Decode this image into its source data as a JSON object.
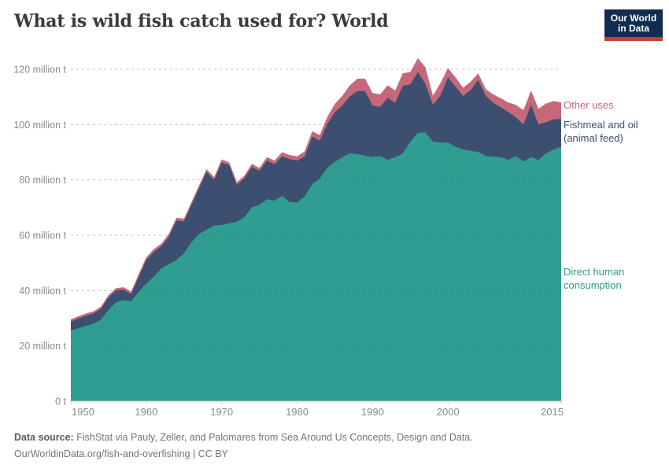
{
  "header": {
    "title": "What is wild fish catch used for? World"
  },
  "logo": {
    "line1": "Our World",
    "line2": "in Data",
    "bg_color": "#102D50",
    "accent_color": "#C53D33"
  },
  "legend": [
    {
      "label": "Other uses",
      "color": "#C5697A"
    },
    {
      "label": "Fishmeal and oil\n(animal feed)",
      "color": "#3D4F70"
    },
    {
      "label": "Direct human\nconsumption",
      "color": "#2F9E90"
    }
  ],
  "footer": {
    "source_label": "Data source:",
    "source_text": " FishStat via Pauly, Zeller, and Palomares from Sea Around Us Concepts, Design and Data.",
    "citation": "OurWorldinData.org/fish-and-overfishing | CC BY"
  },
  "chart_data": {
    "type": "area",
    "stacked": true,
    "title": "What is wild fish catch used for? World",
    "xlabel": "",
    "ylabel": "",
    "grid": true,
    "legend_position": "right",
    "xlim": [
      1950,
      2015
    ],
    "ylim": [
      0,
      120
    ],
    "x_ticks": [
      1950,
      1960,
      1970,
      1980,
      1990,
      2000,
      2015
    ],
    "y_ticks": [
      {
        "value": 0,
        "label": "0 t"
      },
      {
        "value": 20,
        "label": "20 million t"
      },
      {
        "value": 40,
        "label": "40 million t"
      },
      {
        "value": 60,
        "label": "60 million t"
      },
      {
        "value": 80,
        "label": "80 million t"
      },
      {
        "value": 100,
        "label": "100 million t"
      },
      {
        "value": 120,
        "label": "120 million t"
      }
    ],
    "x": [
      1950,
      1951,
      1952,
      1953,
      1954,
      1955,
      1956,
      1957,
      1958,
      1959,
      1960,
      1961,
      1962,
      1963,
      1964,
      1965,
      1966,
      1967,
      1968,
      1969,
      1970,
      1971,
      1972,
      1973,
      1974,
      1975,
      1976,
      1977,
      1978,
      1979,
      1980,
      1981,
      1982,
      1983,
      1984,
      1985,
      1986,
      1987,
      1988,
      1989,
      1990,
      1991,
      1992,
      1993,
      1994,
      1995,
      1996,
      1997,
      1998,
      1999,
      2000,
      2001,
      2002,
      2003,
      2004,
      2005,
      2006,
      2007,
      2008,
      2009,
      2010,
      2011,
      2012,
      2013,
      2014,
      2015
    ],
    "unit": "million tonnes",
    "series": [
      {
        "name": "Direct human consumption",
        "color": "#2F9E90",
        "values": [
          25.5,
          26.4,
          27.3,
          28,
          29.5,
          33,
          35.8,
          36.5,
          36.2,
          39.5,
          42.5,
          45,
          48,
          49.5,
          51,
          53.5,
          57.5,
          60.5,
          62,
          63.5,
          63.7,
          64.3,
          64.9,
          66.5,
          70.1,
          71,
          73,
          72.5,
          74.2,
          72,
          71.8,
          74,
          78.5,
          80.5,
          84.4,
          86.5,
          88.2,
          89.6,
          89.3,
          88.8,
          88.2,
          88.6,
          87.2,
          88.2,
          89.5,
          93.8,
          97,
          97.2,
          93.8,
          93.5,
          93.5,
          92,
          91,
          90.5,
          90.1,
          88.6,
          88.4,
          88.2,
          87.2,
          88.6,
          86.7,
          88.2,
          87.2,
          89.6,
          91,
          92
        ]
      },
      {
        "name": "Fishmeal and oil (animal feed)",
        "color": "#3D4F70",
        "values": [
          3.3,
          3.5,
          3.6,
          3.7,
          3.9,
          4.5,
          4.2,
          3.8,
          2.6,
          5.5,
          8.5,
          9,
          8,
          10,
          14.3,
          11.5,
          13.5,
          16.5,
          20.9,
          16.5,
          22.6,
          21,
          13.2,
          14,
          14.6,
          12.3,
          14,
          13.2,
          14.3,
          15.5,
          15.2,
          14.5,
          17.2,
          13.7,
          15.9,
          18,
          18.7,
          20.6,
          22.8,
          23.3,
          18.7,
          17.8,
          22.5,
          19.6,
          24.5,
          20.7,
          22,
          17.5,
          13.3,
          17,
          23.6,
          21.7,
          19.3,
          22,
          26,
          21.8,
          19.5,
          18,
          17.3,
          14,
          13.3,
          18.9,
          12.8,
          11.3,
          10.9,
          10
        ]
      },
      {
        "name": "Other uses",
        "color": "#C5697A",
        "values": [
          0.8,
          0.8,
          0.8,
          0.8,
          0.8,
          0.9,
          0.9,
          0.9,
          0.8,
          1,
          1,
          1,
          1,
          1,
          1,
          1,
          1,
          1,
          1,
          1,
          1.1,
          1,
          1,
          1,
          1.1,
          1,
          1.2,
          1.3,
          1.5,
          1.5,
          1.5,
          1.8,
          1.9,
          2,
          2.5,
          3,
          3.5,
          4,
          4.5,
          4.5,
          4.5,
          4.5,
          4.5,
          4.5,
          4.5,
          4.5,
          5,
          6,
          3.3,
          4.5,
          3.3,
          3.4,
          3,
          3,
          2.4,
          2.4,
          3,
          3.3,
          3.5,
          4.5,
          5.2,
          5.2,
          5.7,
          6.7,
          6.6,
          6
        ]
      }
    ]
  }
}
